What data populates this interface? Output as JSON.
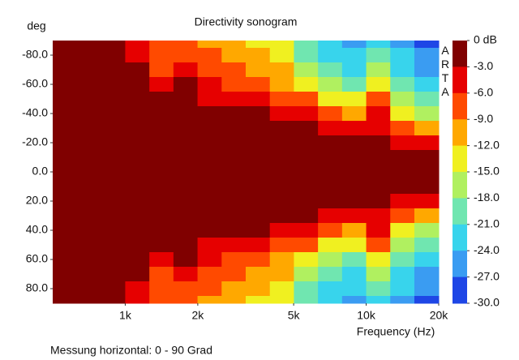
{
  "chart_data": {
    "type": "heatmap",
    "title": "Directivity sonogram",
    "y_label": "deg",
    "x_label": "Frequency (Hz)",
    "footer": "Messung horizontal: 0 - 90 Grad",
    "watermark": "ARTA",
    "x_scale": "log",
    "y_reversed": true,
    "xlim": [
      500,
      20000
    ],
    "ylim": [
      -90,
      90
    ],
    "xticks": [
      {
        "value": 1000,
        "label": "1k"
      },
      {
        "value": 2000,
        "label": "2k"
      },
      {
        "value": 5000,
        "label": "5k"
      },
      {
        "value": 10000,
        "label": "10k"
      },
      {
        "value": 20000,
        "label": "20k"
      }
    ],
    "yticks": [
      {
        "value": -80,
        "label": "-80.0"
      },
      {
        "value": -60,
        "label": "-60.0"
      },
      {
        "value": -40,
        "label": "-40.0"
      },
      {
        "value": -20,
        "label": "-20.0"
      },
      {
        "value": 0,
        "label": "0.0"
      },
      {
        "value": 20,
        "label": "20.0"
      },
      {
        "value": 40,
        "label": "40.0"
      },
      {
        "value": 60,
        "label": "60.0"
      },
      {
        "value": 80,
        "label": "80.0"
      }
    ],
    "cticks": [
      {
        "value": 0,
        "label": "0 dB"
      },
      {
        "value": -3,
        "label": "-3.0"
      },
      {
        "value": -6,
        "label": "-6.0"
      },
      {
        "value": -9,
        "label": "-9.0"
      },
      {
        "value": -12,
        "label": "-12.0"
      },
      {
        "value": -15,
        "label": "-15.0"
      },
      {
        "value": -18,
        "label": "-18.0"
      },
      {
        "value": -21,
        "label": "-21.0"
      },
      {
        "value": -24,
        "label": "-24.0"
      },
      {
        "value": -27,
        "label": "-27.0"
      },
      {
        "value": -30,
        "label": "-30.0"
      }
    ],
    "colors": [
      "#800000",
      "#e60000",
      "#ff4a00",
      "#ffa800",
      "#f0f020",
      "#b0f060",
      "#70e6b0",
      "#38d4ec",
      "#3a9cf2",
      "#1e46e6"
    ],
    "x": [
      561,
      707,
      891,
      1122,
      1413,
      1778,
      2239,
      2818,
      3548,
      4467,
      5623,
      7079,
      8913,
      11220,
      14125,
      17783
    ],
    "y": [
      -90,
      -80,
      -70,
      -60,
      -50,
      -40,
      -30,
      -20,
      -10,
      0,
      10,
      20,
      30,
      40,
      50,
      60,
      70,
      80,
      90
    ],
    "z": [
      [
        -1,
        -1,
        -2,
        -5,
        -8,
        -8,
        -10,
        -11,
        -12,
        -14,
        -20,
        -23,
        -24,
        -21,
        -24,
        -28
      ],
      [
        -1,
        -1,
        -1,
        -4,
        -7,
        -7,
        -8,
        -10,
        -11,
        -13,
        -19,
        -22,
        -23,
        -19,
        -23,
        -26
      ],
      [
        -1,
        -1,
        -1,
        -2,
        -7,
        -4,
        -7,
        -8,
        -10,
        -11,
        -16,
        -20,
        -22,
        -17,
        -22,
        -25
      ],
      [
        -1,
        -1,
        -1,
        -1,
        -4,
        -2,
        -5,
        -7,
        -8,
        -10,
        -13,
        -17,
        -19,
        -13,
        -20,
        -23
      ],
      [
        -1,
        -1,
        -1,
        -1,
        -1,
        -2,
        -4,
        -5,
        -5,
        -7,
        -8,
        -12,
        -14,
        -8,
        -17,
        -20
      ],
      [
        -1,
        -1,
        -1,
        -1,
        -1,
        -1,
        -1,
        -1,
        -2,
        -4,
        -5,
        -7,
        -10,
        -5,
        -13,
        -16
      ],
      [
        -1,
        -1,
        -1,
        -1,
        -1,
        -1,
        -1,
        -1,
        -1,
        -1,
        -2,
        -4,
        -4,
        -3,
        -7,
        -10
      ],
      [
        -1,
        -1,
        -1,
        -1,
        -1,
        -1,
        -1,
        -1,
        -1,
        -1,
        -1,
        -1,
        -1,
        -2,
        -4,
        -5
      ],
      [
        -1,
        -1,
        -1,
        -1,
        -1,
        -1,
        -1,
        -1,
        -1,
        -1,
        -1,
        -1,
        -1,
        -1,
        -1,
        -2
      ],
      [
        -1,
        -1,
        -1,
        -1,
        -1,
        -1,
        -1,
        -1,
        -1,
        -1,
        -1,
        -1,
        -1,
        -1,
        -1,
        -1
      ],
      [
        -1,
        -1,
        -1,
        -1,
        -1,
        -1,
        -1,
        -1,
        -1,
        -1,
        -1,
        -1,
        -1,
        -1,
        -1,
        -2
      ],
      [
        -1,
        -1,
        -1,
        -1,
        -1,
        -1,
        -1,
        -1,
        -1,
        -1,
        -1,
        -1,
        -1,
        -2,
        -4,
        -5
      ],
      [
        -1,
        -1,
        -1,
        -1,
        -1,
        -1,
        -1,
        -1,
        -1,
        -1,
        -2,
        -4,
        -4,
        -3,
        -7,
        -10
      ],
      [
        -1,
        -1,
        -1,
        -1,
        -1,
        -1,
        -1,
        -1,
        -2,
        -4,
        -5,
        -7,
        -10,
        -5,
        -13,
        -16
      ],
      [
        -1,
        -1,
        -1,
        -1,
        -1,
        -2,
        -4,
        -5,
        -5,
        -7,
        -8,
        -12,
        -14,
        -8,
        -17,
        -20
      ],
      [
        -1,
        -1,
        -1,
        -1,
        -4,
        -2,
        -5,
        -7,
        -8,
        -10,
        -13,
        -17,
        -19,
        -13,
        -20,
        -23
      ],
      [
        -1,
        -1,
        -1,
        -2,
        -7,
        -4,
        -7,
        -8,
        -10,
        -11,
        -16,
        -20,
        -22,
        -17,
        -22,
        -25
      ],
      [
        -1,
        -1,
        -1,
        -4,
        -7,
        -7,
        -8,
        -10,
        -11,
        -13,
        -19,
        -22,
        -23,
        -19,
        -23,
        -26
      ],
      [
        -1,
        -1,
        -2,
        -5,
        -8,
        -8,
        -10,
        -11,
        -12,
        -14,
        -20,
        -23,
        -24,
        -21,
        -24,
        -28
      ]
    ]
  }
}
